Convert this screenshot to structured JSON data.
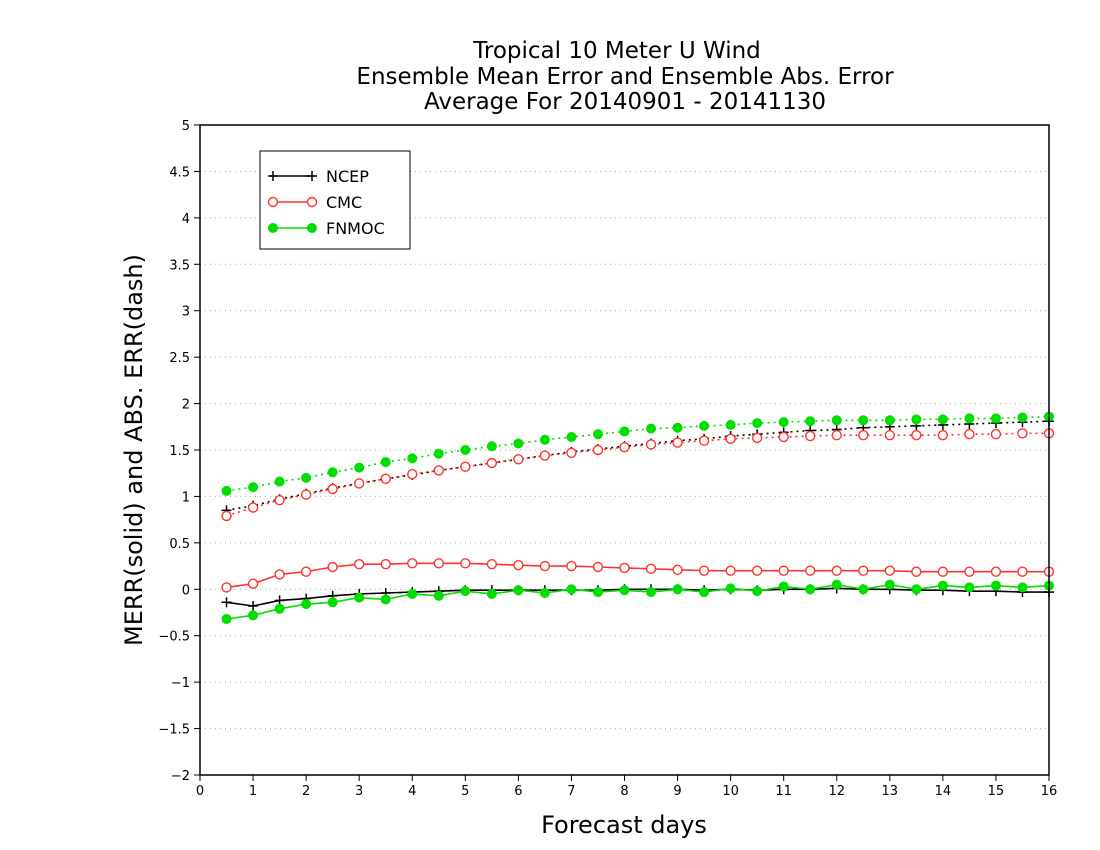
{
  "chart_data": {
    "type": "line",
    "title_lines": [
      "Tropical 10 Meter U Wind",
      "Ensemble Mean Error and Ensemble Abs. Error",
      "Average For 20140901 - 20141130"
    ],
    "xlabel": "Forecast days",
    "ylabel": "MERR(solid) and ABS. ERR(dash)",
    "xlim": [
      0,
      16
    ],
    "ylim": [
      -2,
      5
    ],
    "x_ticks": [
      "0",
      "1",
      "2",
      "3",
      "4",
      "5",
      "6",
      "7",
      "8",
      "9",
      "10",
      "11",
      "12",
      "13",
      "14",
      "15",
      "16"
    ],
    "y_ticks": [
      "5",
      "4.5",
      "4",
      "3.5",
      "3",
      "2.5",
      "2",
      "1.5",
      "1",
      "0.5",
      "0",
      "−0.5",
      "−1",
      "−1.5",
      "−2"
    ],
    "grid": "horizontal-dotted",
    "legend_position": "top-left",
    "x": [
      0.5,
      1,
      1.5,
      2,
      2.5,
      3,
      3.5,
      4,
      4.5,
      5,
      5.5,
      6,
      6.5,
      7,
      7.5,
      8,
      8.5,
      9,
      9.5,
      10,
      10.5,
      11,
      11.5,
      12,
      12.5,
      13,
      13.5,
      14,
      14.5,
      15,
      15.5,
      16
    ],
    "series": [
      {
        "name": "NCEP",
        "color": "#000000",
        "marker": "plus",
        "mean_error": [
          -0.14,
          -0.18,
          -0.12,
          -0.1,
          -0.07,
          -0.05,
          -0.04,
          -0.03,
          -0.02,
          -0.01,
          -0.01,
          -0.01,
          -0.01,
          -0.01,
          -0.01,
          0.0,
          0.0,
          0.0,
          -0.01,
          0.0,
          -0.01,
          0.0,
          0.0,
          0.01,
          0.0,
          0.0,
          -0.01,
          -0.01,
          -0.02,
          -0.02,
          -0.03,
          -0.03
        ],
        "abs_error": [
          0.85,
          0.9,
          0.97,
          1.03,
          1.09,
          1.14,
          1.19,
          1.23,
          1.28,
          1.32,
          1.36,
          1.4,
          1.44,
          1.48,
          1.51,
          1.54,
          1.57,
          1.6,
          1.62,
          1.65,
          1.67,
          1.69,
          1.71,
          1.72,
          1.74,
          1.75,
          1.76,
          1.77,
          1.78,
          1.79,
          1.8,
          1.81
        ]
      },
      {
        "name": "CMC",
        "color": "#ff3333",
        "marker": "open-circle",
        "mean_error": [
          0.02,
          0.06,
          0.16,
          0.19,
          0.24,
          0.27,
          0.27,
          0.28,
          0.28,
          0.28,
          0.27,
          0.26,
          0.25,
          0.25,
          0.24,
          0.23,
          0.22,
          0.21,
          0.2,
          0.2,
          0.2,
          0.2,
          0.2,
          0.2,
          0.2,
          0.2,
          0.19,
          0.19,
          0.19,
          0.19,
          0.19,
          0.19
        ],
        "abs_error": [
          0.79,
          0.88,
          0.96,
          1.02,
          1.08,
          1.14,
          1.19,
          1.24,
          1.28,
          1.32,
          1.36,
          1.4,
          1.44,
          1.47,
          1.5,
          1.53,
          1.56,
          1.58,
          1.6,
          1.62,
          1.63,
          1.64,
          1.65,
          1.66,
          1.66,
          1.66,
          1.66,
          1.66,
          1.67,
          1.67,
          1.68,
          1.68
        ]
      },
      {
        "name": "FNMOC",
        "color": "#00dd00",
        "marker": "filled-circle",
        "mean_error": [
          -0.32,
          -0.28,
          -0.21,
          -0.16,
          -0.14,
          -0.09,
          -0.11,
          -0.05,
          -0.07,
          -0.02,
          -0.05,
          -0.01,
          -0.04,
          0.0,
          -0.03,
          -0.01,
          -0.03,
          0.0,
          -0.03,
          0.01,
          -0.02,
          0.03,
          0.0,
          0.05,
          0.0,
          0.05,
          0.0,
          0.04,
          0.02,
          0.04,
          0.02,
          0.04
        ],
        "abs_error": [
          1.06,
          1.1,
          1.16,
          1.2,
          1.26,
          1.31,
          1.37,
          1.41,
          1.46,
          1.5,
          1.54,
          1.57,
          1.61,
          1.64,
          1.67,
          1.7,
          1.73,
          1.74,
          1.76,
          1.77,
          1.79,
          1.8,
          1.81,
          1.82,
          1.82,
          1.82,
          1.83,
          1.83,
          1.84,
          1.84,
          1.85,
          1.86
        ]
      }
    ]
  }
}
